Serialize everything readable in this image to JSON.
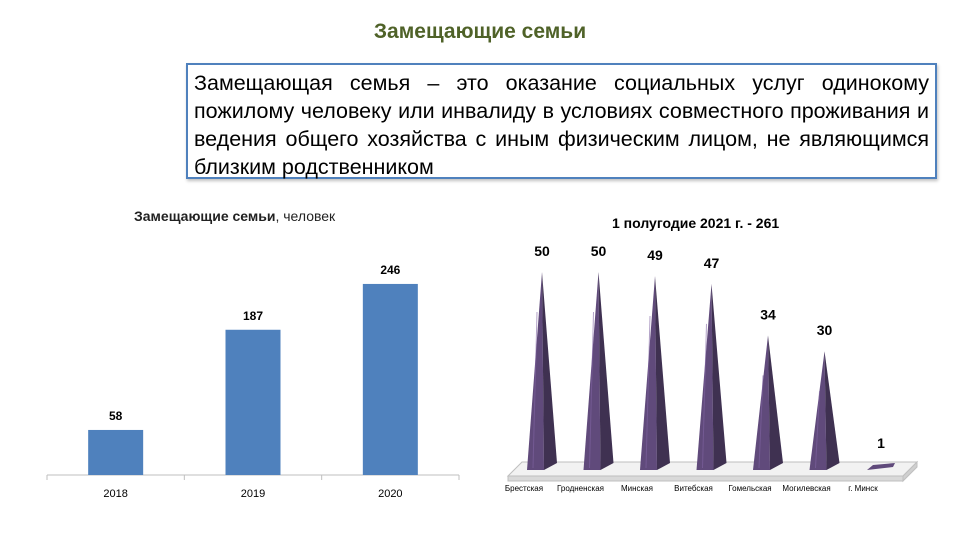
{
  "slide": {
    "title": "Замещающие семьи",
    "definition": "Замещающая семья – это оказание социальных услуг одинокому пожилому человеку или инвалиду в условиях совместного проживания и ведения общего хозяйства с иным физическим лицом, не являющимся близким родственником"
  },
  "chart_data": [
    {
      "type": "bar",
      "title_bold": "Замещающие семьи",
      "title_rest": ", человек",
      "categories": [
        "2018",
        "2019",
        "2020"
      ],
      "values": [
        58,
        187,
        246
      ],
      "ylim": [
        0,
        300
      ],
      "grid": false,
      "bar_color": "#4f81bd"
    },
    {
      "type": "bar",
      "title": "1 полугодие 2021 г. - 261",
      "categories": [
        "Брестская",
        "Гродненская",
        "Минская",
        "Витебская",
        "Гомельская",
        "Могилевская",
        "г. Минск"
      ],
      "values": [
        50,
        50,
        49,
        47,
        34,
        30,
        1
      ],
      "ylim": [
        0,
        50
      ],
      "shape": "3d-cone",
      "color": "#604a7b"
    }
  ]
}
